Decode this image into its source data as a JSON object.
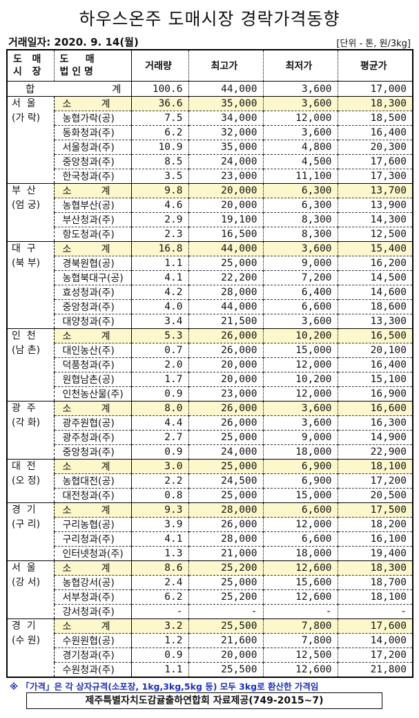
{
  "title": "하우스온주 도매시장 경락가격동향",
  "date": "거래일자: 2020. 9. 14(월)",
  "unit": "[단위 - 톤, 원/3kg]",
  "headers": {
    "market": "도   매\n시   장",
    "corp": "도     매\n법 인 명",
    "volume": "거래량",
    "max": "최고가",
    "min": "최저가",
    "avg": "평균가"
  },
  "total": {
    "label_left": "합",
    "label_right": "계",
    "volume": "100.6",
    "max": "44,000",
    "min": "3,600",
    "avg": "17,000"
  },
  "subtotal_label": {
    "left": "소",
    "right": "계"
  },
  "groups": [
    {
      "market": "서  울\n(가 락)",
      "subtotal": [
        "36.6",
        "35,000",
        "3,600",
        "18,300"
      ],
      "rows": [
        [
          "농협가락(공)",
          "7.5",
          "34,000",
          "12,000",
          "18,500"
        ],
        [
          "동화청과(주)",
          "6.2",
          "32,000",
          "3,600",
          "16,400"
        ],
        [
          "서울청과(주)",
          "10.9",
          "35,000",
          "4,800",
          "20,300"
        ],
        [
          "중앙청과(주)",
          "8.5",
          "24,000",
          "4,500",
          "17,600"
        ],
        [
          "한국청과(주)",
          "3.5",
          "23,000",
          "11,100",
          "17,300"
        ]
      ]
    },
    {
      "market": "부  산\n(엄 궁)",
      "subtotal": [
        "9.8",
        "20,000",
        "6,300",
        "13,700"
      ],
      "rows": [
        [
          "농협부산(공)",
          "4.6",
          "20,000",
          "6,300",
          "13,900"
        ],
        [
          "부산청과(주)",
          "2.9",
          "19,100",
          "8,300",
          "14,300"
        ],
        [
          "항도청과(주)",
          "2.3",
          "16,500",
          "8,300",
          "12,500"
        ]
      ]
    },
    {
      "market": "대  구\n(북 부)",
      "subtotal": [
        "16.8",
        "44,000",
        "3,600",
        "15,400"
      ],
      "rows": [
        [
          "경북원협(공)",
          "1.1",
          "25,000",
          "9,000",
          "16,200"
        ],
        [
          "농협북대구(공)",
          "4.1",
          "22,200",
          "7,200",
          "14,500"
        ],
        [
          "효성청과(주)",
          "4.2",
          "28,000",
          "6,400",
          "14,600"
        ],
        [
          "중앙청과(주)",
          "4.0",
          "44,000",
          "6,600",
          "18,600"
        ],
        [
          "대양청과(주)",
          "3.4",
          "21,500",
          "3,600",
          "13,300"
        ]
      ]
    },
    {
      "market": "인  천\n(남 촌)",
      "subtotal": [
        "5.3",
        "26,000",
        "10,200",
        "16,500"
      ],
      "rows": [
        [
          "대인농산(주)",
          "0.7",
          "26,000",
          "15,000",
          "20,100"
        ],
        [
          "덕풍청과(주)",
          "2.0",
          "20,000",
          "12,000",
          "16,400"
        ],
        [
          "원협남촌(공)",
          "1.7",
          "20,000",
          "10,200",
          "15,100"
        ],
        [
          "인천농산물(주)",
          "0.9",
          "23,000",
          "12,000",
          "16,900"
        ]
      ]
    },
    {
      "market": "광  주\n(각 화)",
      "subtotal": [
        "8.0",
        "26,000",
        "3,600",
        "16,600"
      ],
      "rows": [
        [
          "광주원협(공)",
          "4.4",
          "26,000",
          "3,600",
          "16,300"
        ],
        [
          "광주청과(주)",
          "2.7",
          "25,000",
          "9,000",
          "14,900"
        ],
        [
          "중앙청과(주)",
          "0.9",
          "24,000",
          "18,000",
          "22,900"
        ]
      ]
    },
    {
      "market": "대  전\n(오 정)",
      "subtotal": [
        "3.0",
        "25,000",
        "6,900",
        "18,100"
      ],
      "rows": [
        [
          "농협대전(공)",
          "2.2",
          "24,500",
          "6,900",
          "17,200"
        ],
        [
          "대전청과(주)",
          "0.8",
          "25,000",
          "15,000",
          "20,500"
        ]
      ]
    },
    {
      "market": "경  기\n(구 리)",
      "subtotal": [
        "9.3",
        "28,000",
        "6,600",
        "17,500"
      ],
      "rows": [
        [
          "구리농협(공)",
          "3.9",
          "26,000",
          "12,000",
          "18,200"
        ],
        [
          "구리청과(주)",
          "4.1",
          "28,000",
          "6,600",
          "16,100"
        ],
        [
          "인터넷청과(주)",
          "1.3",
          "21,000",
          "18,000",
          "19,400"
        ]
      ]
    },
    {
      "market": "서  울\n(강 서)",
      "subtotal": [
        "8.6",
        "25,200",
        "12,600",
        "18,300"
      ],
      "rows": [
        [
          "농협강서(공)",
          "2.4",
          "25,000",
          "15,600",
          "18,700"
        ],
        [
          "서부청과(주)",
          "6.2",
          "25,200",
          "12,600",
          "18,100"
        ],
        [
          "강서청과(주)",
          "-",
          "-",
          "-",
          "-"
        ]
      ]
    },
    {
      "market": "경  기\n(수 원)",
      "subtotal": [
        "3.2",
        "25,500",
        "7,800",
        "17,600"
      ],
      "rows": [
        [
          "수원원협(공)",
          "1.2",
          "21,600",
          "7,800",
          "14,000"
        ],
        [
          "경기청과(주)",
          "0.9",
          "20,000",
          "12,500",
          "17,200"
        ],
        [
          "수원청과(주)",
          "1.1",
          "25,500",
          "12,600",
          "21,800"
        ]
      ]
    }
  ],
  "note": "※ 「가격」은 각 상자규격(소포장, 1kg,3kg,5kg 등) 모두 3kg로 환산한 가격임",
  "source": "제주특별자치도감귤출하연합회 자료제공(749-2015~7)",
  "colors": {
    "subtotal_bg": "#fcf8cc",
    "note": "#1a2fc4"
  }
}
